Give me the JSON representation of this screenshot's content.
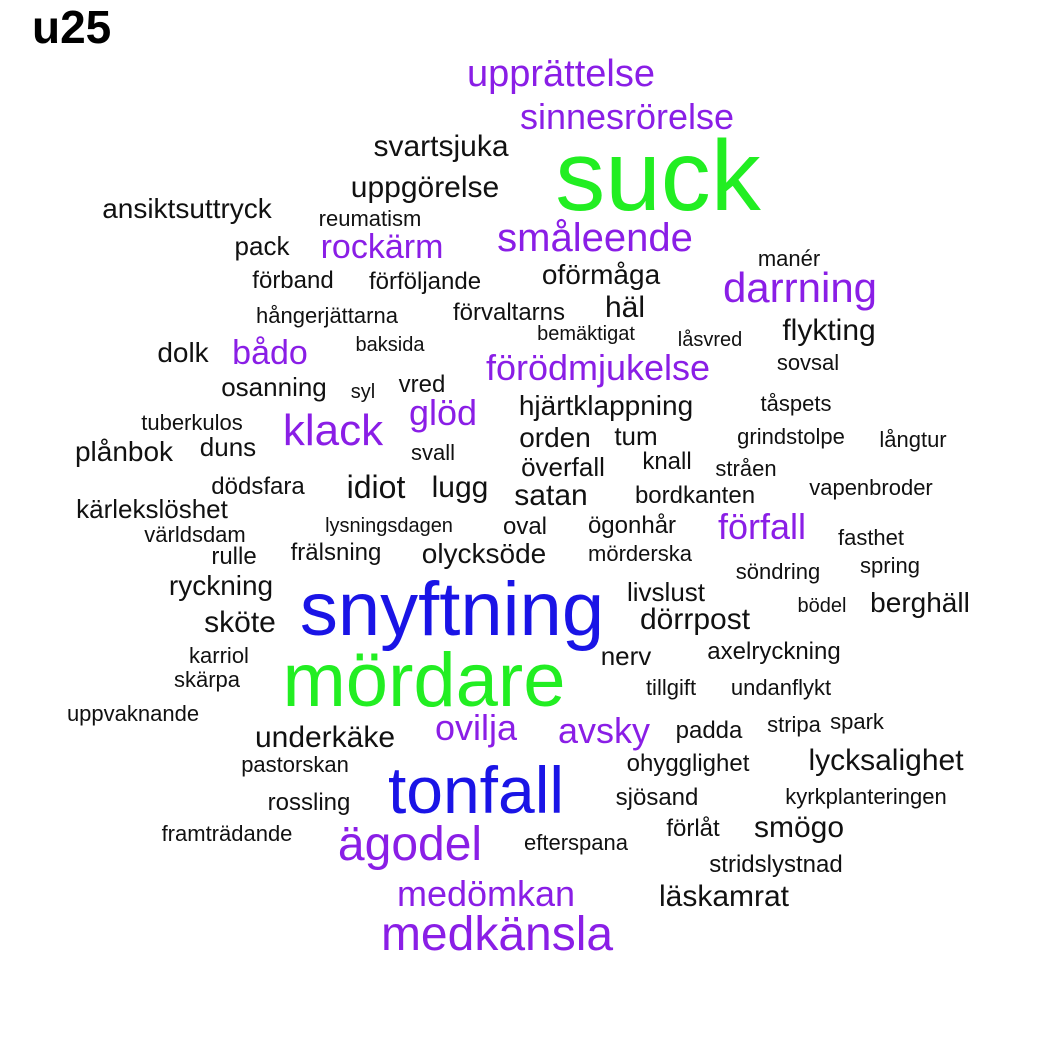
{
  "title": "u25",
  "colors": {
    "black": "#111111",
    "purple": "#8a1ee6",
    "green": "#22ee22",
    "blue": "#1a14e6"
  },
  "words": [
    {
      "text": "suck",
      "color": "green"
    },
    {
      "text": "snyftning",
      "color": "blue"
    },
    {
      "text": "mördare",
      "color": "green"
    },
    {
      "text": "tonfall",
      "color": "blue"
    },
    {
      "text": "ägodel",
      "color": "purple"
    },
    {
      "text": "medkänsla",
      "color": "purple"
    },
    {
      "text": "upprättelse",
      "color": "purple"
    },
    {
      "text": "sinnesrörelse",
      "color": "purple"
    },
    {
      "text": "småleende",
      "color": "purple"
    },
    {
      "text": "darrning",
      "color": "purple"
    },
    {
      "text": "förödmjukelse",
      "color": "purple"
    },
    {
      "text": "klack",
      "color": "purple"
    },
    {
      "text": "glöd",
      "color": "purple"
    },
    {
      "text": "rockärm",
      "color": "purple"
    },
    {
      "text": "bådo",
      "color": "purple"
    },
    {
      "text": "förfall",
      "color": "purple"
    },
    {
      "text": "ovilja",
      "color": "purple"
    },
    {
      "text": "avsky",
      "color": "purple"
    },
    {
      "text": "medömkan",
      "color": "purple"
    },
    {
      "text": "svartsjuka",
      "color": "black"
    },
    {
      "text": "uppgörelse",
      "color": "black"
    },
    {
      "text": "ansiktsuttryck",
      "color": "black"
    },
    {
      "text": "reumatism",
      "color": "black"
    },
    {
      "text": "pack",
      "color": "black"
    },
    {
      "text": "manér",
      "color": "black"
    },
    {
      "text": "oförmåga",
      "color": "black"
    },
    {
      "text": "förband",
      "color": "black"
    },
    {
      "text": "förföljande",
      "color": "black"
    },
    {
      "text": "hångerjättarna",
      "color": "black"
    },
    {
      "text": "förvaltarns",
      "color": "black"
    },
    {
      "text": "häl",
      "color": "black"
    },
    {
      "text": "flykting",
      "color": "black"
    },
    {
      "text": "bemäktigat",
      "color": "black"
    },
    {
      "text": "låsvred",
      "color": "black"
    },
    {
      "text": "dolk",
      "color": "black"
    },
    {
      "text": "baksida",
      "color": "black"
    },
    {
      "text": "sovsal",
      "color": "black"
    },
    {
      "text": "osanning",
      "color": "black"
    },
    {
      "text": "syl",
      "color": "black"
    },
    {
      "text": "vred",
      "color": "black"
    },
    {
      "text": "tåspets",
      "color": "black"
    },
    {
      "text": "hjärtklappning",
      "color": "black"
    },
    {
      "text": "tuberkulos",
      "color": "black"
    },
    {
      "text": "orden",
      "color": "black"
    },
    {
      "text": "tum",
      "color": "black"
    },
    {
      "text": "grindstolpe",
      "color": "black"
    },
    {
      "text": "långtur",
      "color": "black"
    },
    {
      "text": "plånbok",
      "color": "black"
    },
    {
      "text": "duns",
      "color": "black"
    },
    {
      "text": "svall",
      "color": "black"
    },
    {
      "text": "överfall",
      "color": "black"
    },
    {
      "text": "knall",
      "color": "black"
    },
    {
      "text": "stråen",
      "color": "black"
    },
    {
      "text": "idiot",
      "color": "black"
    },
    {
      "text": "lugg",
      "color": "black"
    },
    {
      "text": "dödsfara",
      "color": "black"
    },
    {
      "text": "satan",
      "color": "black"
    },
    {
      "text": "bordkanten",
      "color": "black"
    },
    {
      "text": "vapenbroder",
      "color": "black"
    },
    {
      "text": "kärlekslöshet",
      "color": "black"
    },
    {
      "text": "världsdam",
      "color": "black"
    },
    {
      "text": "lysningsdagen",
      "color": "black"
    },
    {
      "text": "oval",
      "color": "black"
    },
    {
      "text": "ögonhår",
      "color": "black"
    },
    {
      "text": "fasthet",
      "color": "black"
    },
    {
      "text": "rulle",
      "color": "black"
    },
    {
      "text": "frälsning",
      "color": "black"
    },
    {
      "text": "olycksöde",
      "color": "black"
    },
    {
      "text": "mörderska",
      "color": "black"
    },
    {
      "text": "söndring",
      "color": "black"
    },
    {
      "text": "spring",
      "color": "black"
    },
    {
      "text": "ryckning",
      "color": "black"
    },
    {
      "text": "livslust",
      "color": "black"
    },
    {
      "text": "bödel",
      "color": "black"
    },
    {
      "text": "berghäll",
      "color": "black"
    },
    {
      "text": "sköte",
      "color": "black"
    },
    {
      "text": "dörrpost",
      "color": "black"
    },
    {
      "text": "karriol",
      "color": "black"
    },
    {
      "text": "nerv",
      "color": "black"
    },
    {
      "text": "axelryckning",
      "color": "black"
    },
    {
      "text": "skärpa",
      "color": "black"
    },
    {
      "text": "tillgift",
      "color": "black"
    },
    {
      "text": "undanflykt",
      "color": "black"
    },
    {
      "text": "uppvaknande",
      "color": "black"
    },
    {
      "text": "padda",
      "color": "black"
    },
    {
      "text": "stripa",
      "color": "black"
    },
    {
      "text": "spark",
      "color": "black"
    },
    {
      "text": "underkäke",
      "color": "black"
    },
    {
      "text": "pastorskan",
      "color": "black"
    },
    {
      "text": "ohygglighet",
      "color": "black"
    },
    {
      "text": "lycksalighet",
      "color": "black"
    },
    {
      "text": "rossling",
      "color": "black"
    },
    {
      "text": "sjösand",
      "color": "black"
    },
    {
      "text": "kyrkplanteringen",
      "color": "black"
    },
    {
      "text": "framträdande",
      "color": "black"
    },
    {
      "text": "förlåt",
      "color": "black"
    },
    {
      "text": "smögo",
      "color": "black"
    },
    {
      "text": "efterspana",
      "color": "black"
    },
    {
      "text": "stridslystnad",
      "color": "black"
    },
    {
      "text": "läskamrat",
      "color": "black"
    }
  ]
}
